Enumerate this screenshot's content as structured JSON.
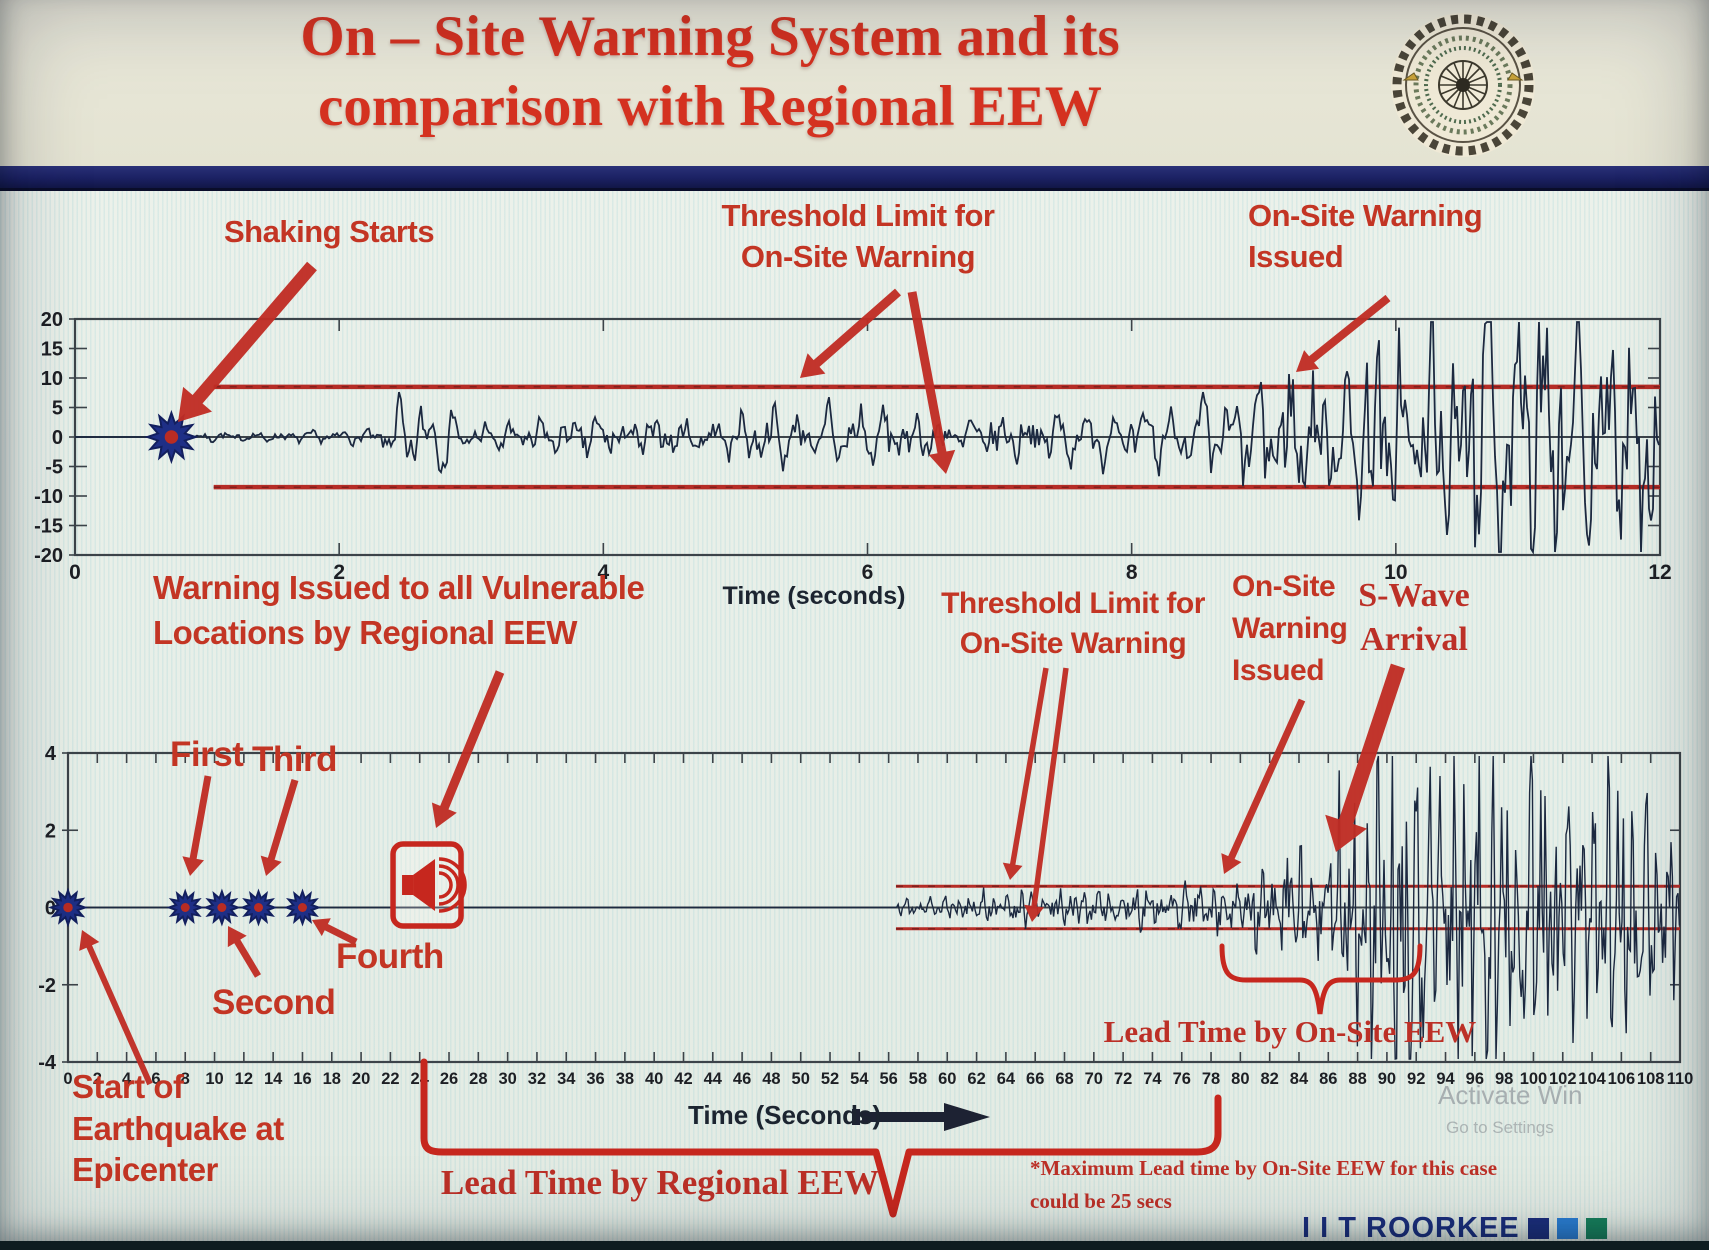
{
  "header": {
    "title_line1": "On – Site Warning System and its",
    "title_line2": "comparison with Regional EEW",
    "logo_name": "iit-roorkee-emblem"
  },
  "colors": {
    "title_red": "#d43120",
    "annotation_red": "#c33524",
    "threshold_red": "#b52c26",
    "waveform_navy": "#1c2940",
    "divider_navy": "#1b2163",
    "brand_navy": "#1b2f7e",
    "brand_squares": [
      "#1c2f7d",
      "#2b7fd4",
      "#17805c"
    ]
  },
  "top_section": {
    "shaking_starts": "Shaking Starts",
    "threshold_line1": "Threshold Limit for",
    "threshold_line2": "On-Site Warning",
    "issued_line1": "On-Site Warning",
    "issued_line2": "Issued",
    "xlabel": "Time (seconds)"
  },
  "bottom_section": {
    "warning_line1": "Warning Issued to all Vulnerable",
    "warning_line2": "Locations by Regional EEW",
    "first": "First",
    "third": "Third",
    "second": "Second",
    "fourth": "Fourth",
    "threshold_line1": "Threshold Limit for",
    "threshold_line2": "On-Site Warning",
    "issued_line1": "On-Site",
    "issued_line2": "Warning",
    "issued_line3": "Issued",
    "swave_line1": "S-Wave",
    "swave_line2": "Arrival",
    "lead_onsite": "Lead Time by On-Site EEW",
    "lead_regional": "Lead Time by Regional EEW",
    "max_note_line1": "*Maximum Lead time by On-Site EEW for this case",
    "max_note_line2": "could be 25 secs",
    "start_line1": "Start of",
    "start_line2": "Earthquake at",
    "start_line3": "Epicenter",
    "xlabel": "Time (Seconds)"
  },
  "footer": {
    "brand": "I I T ROORKEE"
  },
  "watermark": {
    "line1": "Activate Win",
    "line2": "Go to Settings"
  },
  "chart_data": [
    {
      "type": "line",
      "name": "onsite-warning-seismogram",
      "xlabel": "Time (seconds)",
      "xlim": [
        0,
        12
      ],
      "ylim": [
        -20,
        20
      ],
      "x_ticks": [
        0,
        2,
        4,
        6,
        8,
        10,
        12
      ],
      "y_ticks": [
        20,
        15,
        10,
        5,
        0,
        -5,
        -10,
        -15,
        -20
      ],
      "grid": false,
      "threshold_level": 8.5,
      "threshold_start_x": 1.05,
      "shaking_start_marker_x": 0.73,
      "warning_issued_x": 9.15,
      "series": [
        {
          "name": "ground-motion",
          "amplitude_envelope": [
            [
              0.73,
              0.3
            ],
            [
              1.2,
              0.6
            ],
            [
              2.3,
              0.8
            ],
            [
              2.45,
              3.2
            ],
            [
              2.75,
              3.4
            ],
            [
              3.0,
              1.3
            ],
            [
              3.4,
              1.6
            ],
            [
              4.0,
              2.8
            ],
            [
              4.6,
              2.0
            ],
            [
              5.4,
              2.6
            ],
            [
              6.0,
              3.2
            ],
            [
              6.6,
              2.4
            ],
            [
              7.4,
              3.0
            ],
            [
              8.2,
              2.6
            ],
            [
              8.8,
              4.2
            ],
            [
              9.15,
              8.0
            ],
            [
              9.5,
              7.0
            ],
            [
              9.8,
              13
            ],
            [
              10.1,
              11
            ],
            [
              10.45,
              17
            ],
            [
              10.8,
              14
            ],
            [
              11.15,
              17.5
            ],
            [
              11.5,
              12
            ],
            [
              11.75,
              16
            ],
            [
              12,
              13
            ]
          ]
        }
      ]
    },
    {
      "type": "line",
      "name": "regional-vs-onsite-seismogram",
      "xlabel": "Time (Seconds)",
      "xlim": [
        0,
        110
      ],
      "ylim": [
        -4,
        4
      ],
      "x_tick_step": 2,
      "y_ticks": [
        4,
        2,
        0,
        -2,
        -4
      ],
      "grid": false,
      "threshold_level": 0.55,
      "threshold_start_x": 56.5,
      "p_wave_detection_markers_x": [
        0,
        8,
        10.5,
        13,
        16
      ],
      "regional_warning_alarm_x": 24.5,
      "onsite_warning_issued_x": 79,
      "s_wave_arrival_x": 87.5,
      "lead_time_regional_span": [
        24.3,
        78.5
      ],
      "lead_time_onsite_span": [
        78.8,
        92.3
      ],
      "max_lead_time_onsite_secs": 25,
      "series": [
        {
          "name": "ground-motion",
          "amplitude_envelope": [
            [
              56.5,
              0.12
            ],
            [
              62,
              0.22
            ],
            [
              68,
              0.25
            ],
            [
              74,
              0.28
            ],
            [
              79,
              0.35
            ],
            [
              81,
              0.5
            ],
            [
              83,
              0.9
            ],
            [
              85,
              0.7
            ],
            [
              86.5,
              1.1
            ],
            [
              88,
              2.2
            ],
            [
              90,
              2.7
            ],
            [
              92,
              2.4
            ],
            [
              93.5,
              2.8
            ],
            [
              95,
              2.2
            ],
            [
              97,
              2.5
            ],
            [
              99,
              1.9
            ],
            [
              101,
              2.2
            ],
            [
              103,
              1.7
            ],
            [
              105,
              1.9
            ],
            [
              107,
              1.5
            ],
            [
              109,
              1.7
            ],
            [
              110,
              1.4
            ]
          ]
        }
      ]
    }
  ]
}
